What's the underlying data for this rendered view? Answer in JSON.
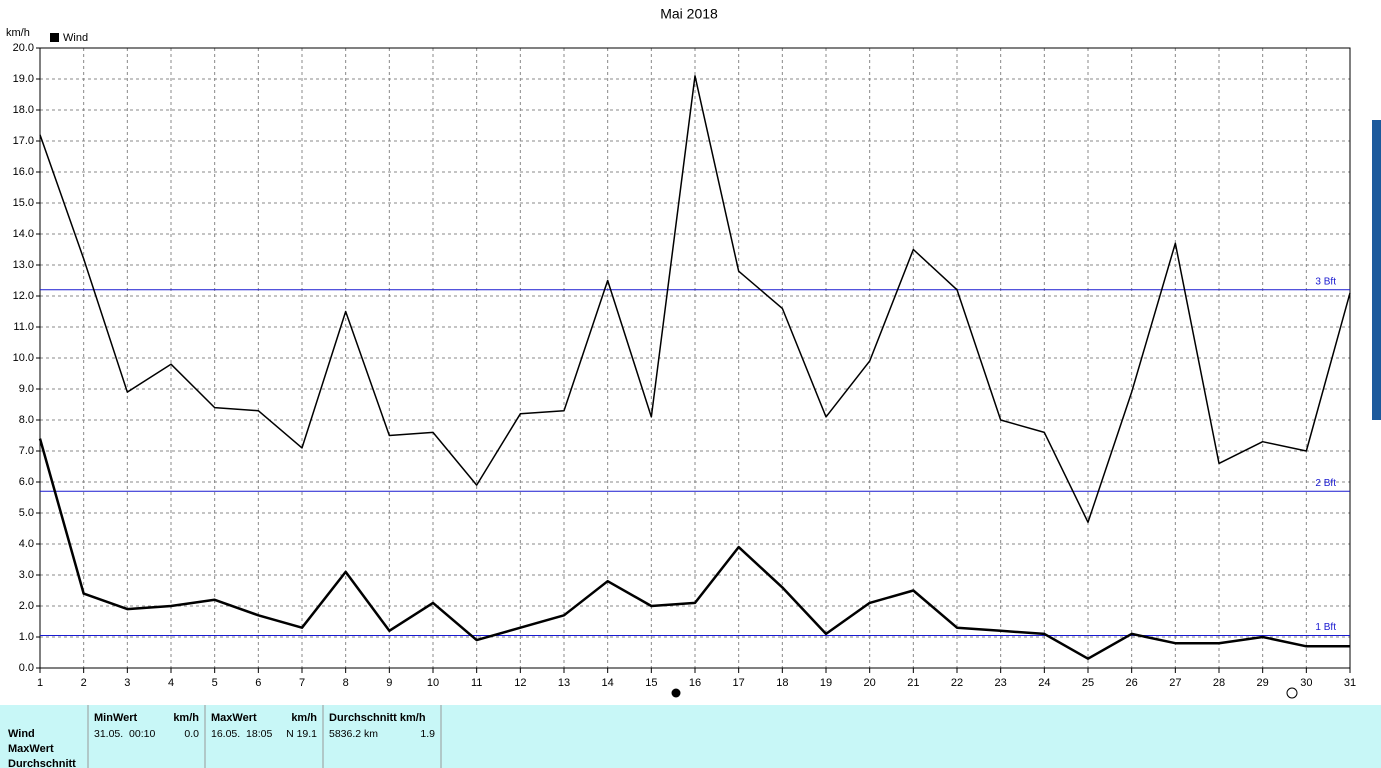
{
  "chart_data": {
    "type": "line",
    "title": "Mai 2018",
    "y_label": "km/h",
    "legend": "Wind",
    "x": [
      1,
      2,
      3,
      4,
      5,
      6,
      7,
      8,
      9,
      10,
      11,
      12,
      13,
      14,
      15,
      16,
      17,
      18,
      19,
      20,
      21,
      22,
      23,
      24,
      25,
      26,
      27,
      28,
      29,
      30,
      31
    ],
    "xlim": [
      1,
      31
    ],
    "xticks": [
      1,
      2,
      3,
      4,
      5,
      6,
      7,
      8,
      9,
      10,
      11,
      12,
      13,
      14,
      15,
      16,
      17,
      18,
      19,
      20,
      21,
      22,
      23,
      24,
      25,
      26,
      27,
      28,
      29,
      30,
      31
    ],
    "series": [
      {
        "color": "#000000",
        "width": 1.5,
        "values": [
          17.2,
          13.2,
          8.9,
          9.8,
          8.4,
          8.3,
          7.1,
          11.5,
          7.5,
          7.6,
          5.9,
          8.2,
          8.3,
          12.5,
          8.1,
          19.1,
          12.8,
          11.6,
          8.1,
          9.9,
          13.5,
          12.2,
          8.0,
          7.6,
          4.7,
          8.9,
          13.7,
          6.6,
          7.3,
          7.0,
          12.1
        ]
      },
      {
        "color": "#000000",
        "width": 2.5,
        "values": [
          7.4,
          2.4,
          1.9,
          2.0,
          2.2,
          1.7,
          1.3,
          3.1,
          1.2,
          2.1,
          0.9,
          1.3,
          1.7,
          2.8,
          2.0,
          2.1,
          3.9,
          2.6,
          1.1,
          2.1,
          2.5,
          1.3,
          1.2,
          1.1,
          0.3,
          1.1,
          0.8,
          0.8,
          1.0,
          0.7,
          0.7
        ]
      }
    ],
    "reference_lines": [
      {
        "value": 12.2,
        "label": "3 Bft"
      },
      {
        "value": 5.7,
        "label": "2 Bft"
      },
      {
        "value": 1.05,
        "label": "1 Bft"
      }
    ],
    "reference_color": "#1a1ad0",
    "ylim": [
      0,
      20
    ],
    "yticks": [
      {
        "value": 0,
        "label": "0.0"
      },
      {
        "value": 1,
        "label": "1.0"
      },
      {
        "value": 2,
        "label": "2.0"
      },
      {
        "value": 3,
        "label": "3.0"
      },
      {
        "value": 4,
        "label": "4.0"
      },
      {
        "value": 5,
        "label": "5.0"
      },
      {
        "value": 6,
        "label": "6.0"
      },
      {
        "value": 7,
        "label": "7.0"
      },
      {
        "value": 8,
        "label": "8.0"
      },
      {
        "value": 9,
        "label": "9.0"
      },
      {
        "value": 10,
        "label": "10.0"
      },
      {
        "value": 11,
        "label": "11.0"
      },
      {
        "value": 12,
        "label": "12.0"
      },
      {
        "value": 13,
        "label": "13.0"
      },
      {
        "value": 14,
        "label": "14.0"
      },
      {
        "value": 15,
        "label": "15.0"
      },
      {
        "value": 16,
        "label": "16.0"
      },
      {
        "value": 17,
        "label": "17.0"
      },
      {
        "value": 18,
        "label": "18.0"
      },
      {
        "value": 19,
        "label": "19.0"
      },
      {
        "value": 20,
        "label": "20.0"
      }
    ],
    "grid": true
  },
  "table": {
    "row_labels": [
      "Wind",
      "MaxWert",
      "Durchschnitt"
    ],
    "columns": [
      {
        "header": [
          "MinWert",
          "km/h"
        ],
        "cells": [
          "31.05.  00:10",
          "0.0"
        ]
      },
      {
        "header": [
          "MaxWert",
          "km/h"
        ],
        "cells": [
          "16.05.  18:05",
          "N 19.1"
        ]
      },
      {
        "header": [
          "Durchschnitt km/h"
        ],
        "cells": [
          "5836.2 km",
          "1.9"
        ]
      }
    ]
  }
}
